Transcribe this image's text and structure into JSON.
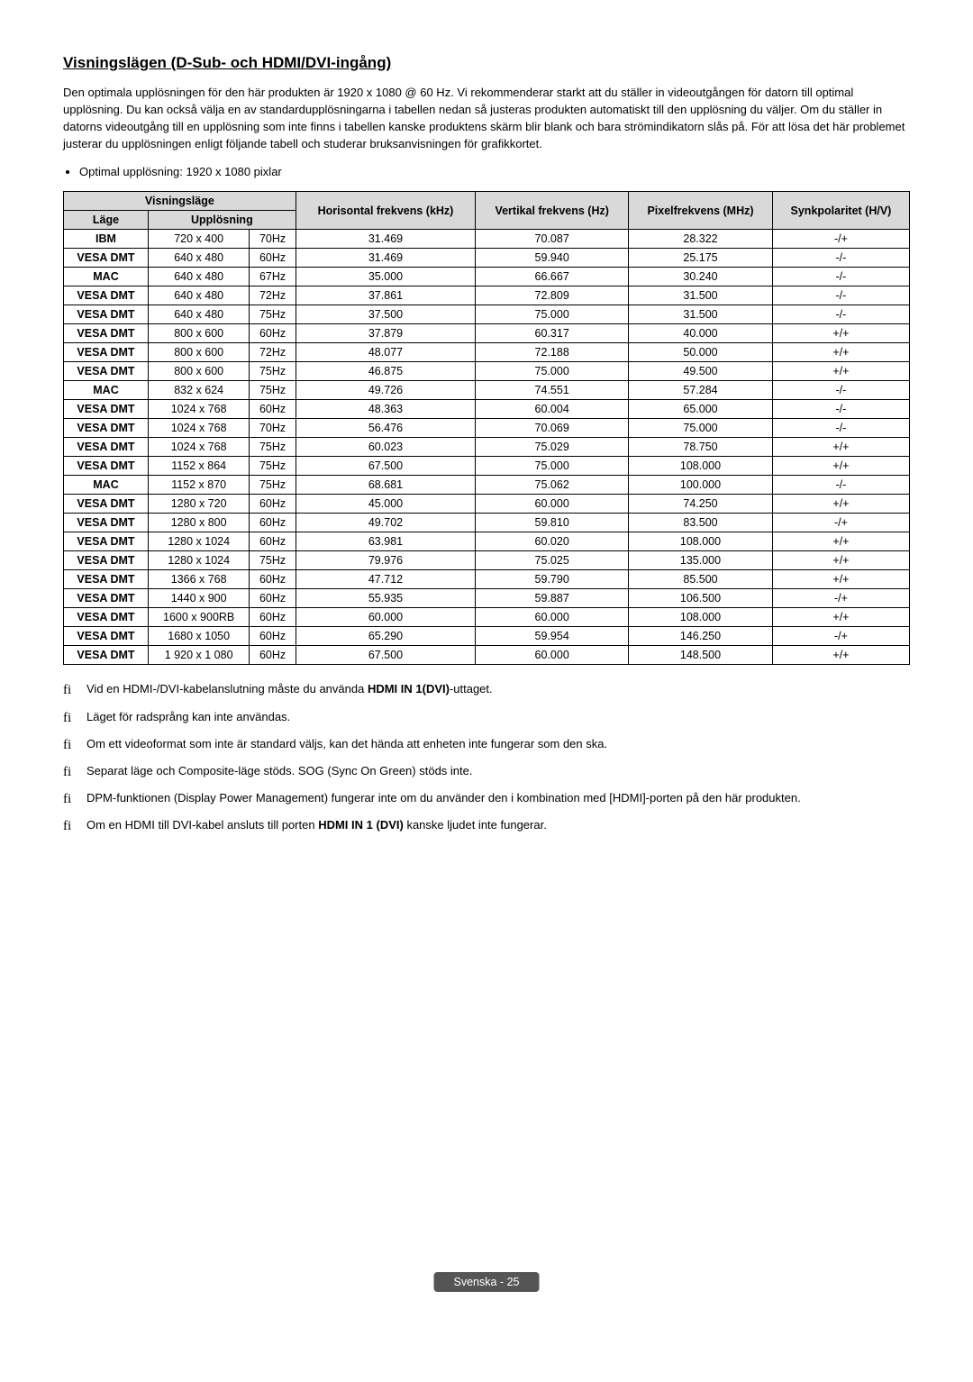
{
  "title": "Visningslägen (D-Sub- och HDMI/DVI-ingång)",
  "intro": "Den optimala upplösningen för den här produkten är 1920 x 1080 @ 60 Hz. Vi rekommenderar starkt att du ställer in videoutgången för datorn till optimal upplösning. Du kan också välja en av standardupplösningarna i tabellen nedan så justeras produkten automatiskt till den upplösning du väljer. Om du ställer in datorns videoutgång till en upplösning som inte finns i tabellen kanske produktens skärm blir blank och bara strömindikatorn slås på. För att lösa det här problemet justerar du upplösningen enligt följande tabell och studerar bruksanvisningen för grafikkortet.",
  "optimal": "Optimal upplösning: 1920 x 1080 pixlar",
  "headers": {
    "group_mode": "Visningsläge",
    "mode": "Läge",
    "res": "Upplösning",
    "hfreq": "Horisontal frekvens (kHz)",
    "vfreq": "Vertikal frekvens (Hz)",
    "pfreq": "Pixelfrekvens (MHz)",
    "sync": "Synkpolaritet (H/V)"
  },
  "rows": [
    {
      "mode": "IBM",
      "res": "720 x 400",
      "hz": "70Hz",
      "h": "31.469",
      "v": "70.087",
      "p": "28.322",
      "s": "-/+"
    },
    {
      "mode": "VESA DMT",
      "res": "640 x 480",
      "hz": "60Hz",
      "h": "31.469",
      "v": "59.940",
      "p": "25.175",
      "s": "-/-"
    },
    {
      "mode": "MAC",
      "res": "640 x 480",
      "hz": "67Hz",
      "h": "35.000",
      "v": "66.667",
      "p": "30.240",
      "s": "-/-"
    },
    {
      "mode": "VESA DMT",
      "res": "640 x 480",
      "hz": "72Hz",
      "h": "37.861",
      "v": "72.809",
      "p": "31.500",
      "s": "-/-"
    },
    {
      "mode": "VESA DMT",
      "res": "640 x 480",
      "hz": "75Hz",
      "h": "37.500",
      "v": "75.000",
      "p": "31.500",
      "s": "-/-"
    },
    {
      "mode": "VESA DMT",
      "res": "800 x 600",
      "hz": "60Hz",
      "h": "37.879",
      "v": "60.317",
      "p": "40.000",
      "s": "+/+"
    },
    {
      "mode": "VESA DMT",
      "res": "800 x 600",
      "hz": "72Hz",
      "h": "48.077",
      "v": "72.188",
      "p": "50.000",
      "s": "+/+"
    },
    {
      "mode": "VESA DMT",
      "res": "800 x 600",
      "hz": "75Hz",
      "h": "46.875",
      "v": "75.000",
      "p": "49.500",
      "s": "+/+"
    },
    {
      "mode": "MAC",
      "res": "832 x 624",
      "hz": "75Hz",
      "h": "49.726",
      "v": "74.551",
      "p": "57.284",
      "s": "-/-"
    },
    {
      "mode": "VESA DMT",
      "res": "1024 x 768",
      "hz": "60Hz",
      "h": "48.363",
      "v": "60.004",
      "p": "65.000",
      "s": "-/-"
    },
    {
      "mode": "VESA DMT",
      "res": "1024 x 768",
      "hz": "70Hz",
      "h": "56.476",
      "v": "70.069",
      "p": "75.000",
      "s": "-/-"
    },
    {
      "mode": "VESA DMT",
      "res": "1024 x 768",
      "hz": "75Hz",
      "h": "60.023",
      "v": "75.029",
      "p": "78.750",
      "s": "+/+"
    },
    {
      "mode": "VESA DMT",
      "res": "1152 x 864",
      "hz": "75Hz",
      "h": "67.500",
      "v": "75.000",
      "p": "108.000",
      "s": "+/+"
    },
    {
      "mode": "MAC",
      "res": "1152 x 870",
      "hz": "75Hz",
      "h": "68.681",
      "v": "75.062",
      "p": "100.000",
      "s": "-/-"
    },
    {
      "mode": "VESA DMT",
      "res": "1280 x 720",
      "hz": "60Hz",
      "h": "45.000",
      "v": "60.000",
      "p": "74.250",
      "s": "+/+"
    },
    {
      "mode": "VESA DMT",
      "res": "1280 x 800",
      "hz": "60Hz",
      "h": "49.702",
      "v": "59.810",
      "p": "83.500",
      "s": "-/+"
    },
    {
      "mode": "VESA DMT",
      "res": "1280 x 1024",
      "hz": "60Hz",
      "h": "63.981",
      "v": "60.020",
      "p": "108.000",
      "s": "+/+"
    },
    {
      "mode": "VESA DMT",
      "res": "1280 x 1024",
      "hz": "75Hz",
      "h": "79.976",
      "v": "75.025",
      "p": "135.000",
      "s": "+/+"
    },
    {
      "mode": "VESA DMT",
      "res": "1366 x 768",
      "hz": "60Hz",
      "h": "47.712",
      "v": "59.790",
      "p": "85.500",
      "s": "+/+"
    },
    {
      "mode": "VESA DMT",
      "res": "1440 x 900",
      "hz": "60Hz",
      "h": "55.935",
      "v": "59.887",
      "p": "106.500",
      "s": "-/+"
    },
    {
      "mode": "VESA DMT",
      "res": "1600 x 900RB",
      "hz": "60Hz",
      "h": "60.000",
      "v": "60.000",
      "p": "108.000",
      "s": "+/+"
    },
    {
      "mode": "VESA DMT",
      "res": "1680 x 1050",
      "hz": "60Hz",
      "h": "65.290",
      "v": "59.954",
      "p": "146.250",
      "s": "-/+"
    },
    {
      "mode": "VESA DMT",
      "res": "1 920 x 1 080",
      "hz": "60Hz",
      "h": "67.500",
      "v": "60.000",
      "p": "148.500",
      "s": "+/+"
    }
  ],
  "notes": [
    {
      "pre": "Vid en HDMI-/DVI-kabelanslutning måste du använda ",
      "bold": "HDMI IN 1(DVI)",
      "post": "-uttaget."
    },
    {
      "pre": "Läget för radsprång kan inte användas.",
      "bold": "",
      "post": ""
    },
    {
      "pre": "Om ett videoformat som inte är standard väljs, kan det hända att enheten inte fungerar som den ska.",
      "bold": "",
      "post": ""
    },
    {
      "pre": "Separat läge och Composite-läge stöds. SOG (Sync On Green) stöds inte.",
      "bold": "",
      "post": ""
    },
    {
      "pre": "DPM-funktionen (Display Power Management) fungerar inte om du använder den i kombination med [HDMI]-porten på den här produkten.",
      "bold": "",
      "post": ""
    },
    {
      "pre": "Om en HDMI till DVI-kabel ansluts till porten ",
      "bold": "HDMI IN 1 (DVI)",
      "post": " kanske ljudet inte fungerar."
    }
  ],
  "footer": "Svenska - 25"
}
